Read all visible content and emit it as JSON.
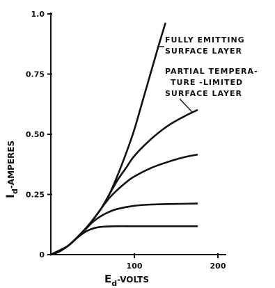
{
  "chart_data": {
    "type": "line",
    "xlabel": "E_d -VOLTS",
    "xlabel_main": "E",
    "xlabel_sub": "d",
    "xlabel_rest": "-VOLTS",
    "ylabel": "I_d -AMPERES",
    "ylabel_main": "I",
    "ylabel_sub": "d",
    "ylabel_rest": "-AMPERES",
    "xlim": [
      0,
      210
    ],
    "ylim": [
      0,
      1.0
    ],
    "x_ticks": [
      100,
      200
    ],
    "x_tick_labels": [
      "100",
      "200"
    ],
    "y_ticks": [
      0,
      0.25,
      0.5,
      0.75,
      1.0
    ],
    "y_tick_labels": [
      "0",
      "0.25",
      "0.50",
      "0.75",
      "1.0"
    ],
    "grid": false,
    "series": [
      {
        "points": [
          [
            0,
            0
          ],
          [
            10,
            0.012
          ],
          [
            20,
            0.035
          ],
          [
            30,
            0.066
          ],
          [
            40,
            0.102
          ],
          [
            50,
            0.143
          ],
          [
            60,
            0.19
          ],
          [
            70,
            0.25
          ],
          [
            80,
            0.33
          ],
          [
            90,
            0.42
          ],
          [
            100,
            0.52
          ],
          [
            110,
            0.64
          ],
          [
            120,
            0.76
          ],
          [
            130,
            0.88
          ],
          [
            137,
            0.96
          ]
        ]
      },
      {
        "points": [
          [
            0,
            0
          ],
          [
            20,
            0.035
          ],
          [
            40,
            0.102
          ],
          [
            50,
            0.143
          ],
          [
            60,
            0.19
          ],
          [
            70,
            0.25
          ],
          [
            80,
            0.31
          ],
          [
            90,
            0.36
          ],
          [
            100,
            0.41
          ],
          [
            120,
            0.48
          ],
          [
            140,
            0.535
          ],
          [
            160,
            0.575
          ],
          [
            175,
            0.6
          ]
        ]
      },
      {
        "points": [
          [
            0,
            0
          ],
          [
            20,
            0.035
          ],
          [
            40,
            0.102
          ],
          [
            50,
            0.143
          ],
          [
            60,
            0.19
          ],
          [
            70,
            0.235
          ],
          [
            80,
            0.27
          ],
          [
            90,
            0.3
          ],
          [
            100,
            0.325
          ],
          [
            120,
            0.36
          ],
          [
            140,
            0.385
          ],
          [
            160,
            0.405
          ],
          [
            175,
            0.415
          ]
        ]
      },
      {
        "points": [
          [
            0,
            0
          ],
          [
            20,
            0.035
          ],
          [
            40,
            0.1
          ],
          [
            50,
            0.135
          ],
          [
            60,
            0.16
          ],
          [
            70,
            0.178
          ],
          [
            80,
            0.19
          ],
          [
            100,
            0.203
          ],
          [
            120,
            0.208
          ],
          [
            140,
            0.21
          ],
          [
            175,
            0.212
          ]
        ]
      },
      {
        "points": [
          [
            0,
            0
          ],
          [
            20,
            0.035
          ],
          [
            30,
            0.065
          ],
          [
            40,
            0.092
          ],
          [
            50,
            0.108
          ],
          [
            60,
            0.115
          ],
          [
            80,
            0.118
          ],
          [
            100,
            0.118
          ],
          [
            140,
            0.118
          ],
          [
            175,
            0.118
          ]
        ]
      }
    ],
    "annotations": {
      "fully_emitting": [
        "FULLY EMITTING",
        "SURFACE LAYER"
      ],
      "partial": [
        "PARTIAL TEMPERA-",
        "TURE -LIMITED",
        "SURFACE LAYER"
      ]
    }
  }
}
